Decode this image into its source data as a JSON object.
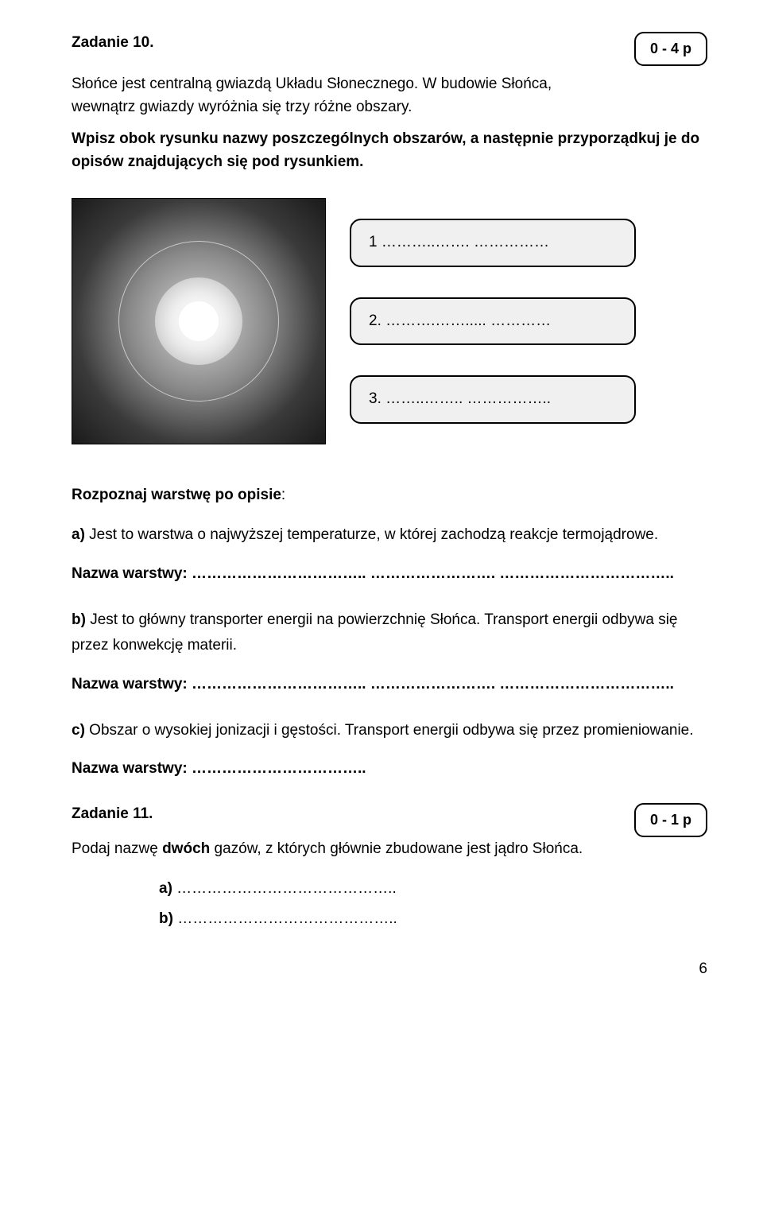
{
  "task10": {
    "points_label": "0 - 4 p",
    "title": "Zadanie 10.",
    "intro": "Słońce jest centralną gwiazdą Układu Słonecznego. W budowie Słońca, wewnątrz gwiazdy wyróżnia się trzy różne obszary.",
    "instruction_bold": "Wpisz obok rysunku nazwy poszczególnych obszarów, a następnie przyporządkuj je do opisów znajdujących się pod rysunkiem.",
    "labels": {
      "l1": "1 ………..……. ……………",
      "l2": "2. ……….……..... …………",
      "l3": "3. ……..…….. …………….."
    },
    "recognize_heading": "Rozpoznaj warstwę po opisie",
    "options": {
      "a": {
        "label": "a)",
        "text": " Jest to warstwa o najwyższej temperaturze, w której zachodzą reakcje termojądrowe."
      },
      "b": {
        "label": "b)",
        "text": " Jest to główny transporter energii na powierzchnię Słońca. Transport energii odbywa się przez konwekcję materii."
      },
      "c": {
        "label": "c)",
        "text": " Obszar o wysokiej jonizacji i gęstości. Transport energii odbywa się przez promieniowanie."
      }
    },
    "answer_label_long": "Nazwa warstwy: …………………………….. ……………………. ……………………………..",
    "answer_label_short": "Nazwa warstwy: …………………………….."
  },
  "task11": {
    "points_label": "0 - 1 p",
    "title": "Zadanie 11.",
    "instruction_prefix": "Podaj nazwę ",
    "instruction_bold": "dwóch",
    "instruction_suffix": " gazów, z których głównie zbudowane jest jądro Słońca.",
    "a_label": "a)",
    "a_dots": "  ……………………………………..",
    "b_label": "b)",
    "b_dots": "  …………………………………….."
  },
  "page_number": "6"
}
